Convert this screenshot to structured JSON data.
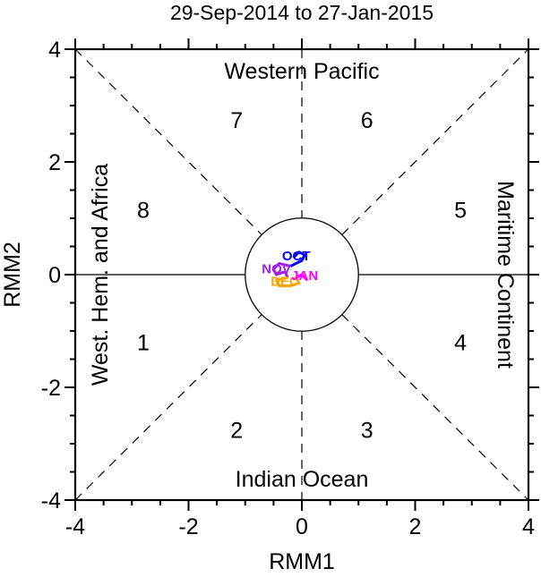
{
  "chart_data": {
    "type": "line",
    "title": "29-Sep-2014 to 27-Jan-2015",
    "xlabel": "RMM1",
    "ylabel": "RMM2",
    "xlim": [
      -4,
      4
    ],
    "ylim": [
      -4,
      4
    ],
    "xticks": [
      -4,
      -2,
      0,
      2,
      4
    ],
    "yticks": [
      -4,
      -2,
      0,
      2,
      4
    ],
    "xtick_labels": [
      "-4",
      "-2",
      "0",
      "2",
      "4"
    ],
    "ytick_labels": [
      "-4",
      "-2",
      "0",
      "2",
      "4"
    ],
    "grid": false,
    "region_labels": {
      "top": "Western Pacific",
      "bottom": "Indian Ocean",
      "left": "West. Hem. and Africa",
      "right": "Maritime Continent"
    },
    "phases": [
      {
        "label": "1",
        "x": -2.8,
        "y": -1.2
      },
      {
        "label": "2",
        "x": -1.15,
        "y": -2.75
      },
      {
        "label": "3",
        "x": 1.15,
        "y": -2.75
      },
      {
        "label": "4",
        "x": 2.8,
        "y": -1.2
      },
      {
        "label": "5",
        "x": 2.8,
        "y": 1.15
      },
      {
        "label": "6",
        "x": 1.15,
        "y": 2.75
      },
      {
        "label": "7",
        "x": -1.15,
        "y": 2.75
      },
      {
        "label": "8",
        "x": -2.8,
        "y": 1.15
      }
    ],
    "series": [
      {
        "name": "OCT",
        "color": "#0000ff",
        "x": [
          -0.15,
          -0.05,
          0.05,
          0.0,
          -0.1,
          -0.2
        ],
        "y": [
          0.3,
          0.4,
          0.35,
          0.25,
          0.2,
          0.15
        ]
      },
      {
        "name": "NOV",
        "color": "#a020f0",
        "x": [
          -0.2,
          -0.4,
          -0.5,
          -0.45,
          -0.3,
          -0.25
        ],
        "y": [
          0.15,
          0.2,
          0.1,
          0.0,
          0.05,
          -0.05
        ]
      },
      {
        "name": "DEC",
        "color": "#ffa500",
        "x": [
          -0.25,
          -0.45,
          -0.4,
          -0.2,
          -0.05,
          -0.1
        ],
        "y": [
          -0.05,
          -0.1,
          -0.2,
          -0.2,
          -0.15,
          -0.05
        ]
      },
      {
        "name": "JAN",
        "color": "#ff00ff",
        "x": [
          -0.1,
          0.0,
          0.05,
          0.1
        ],
        "y": [
          -0.05,
          0.0,
          -0.05,
          -0.1
        ]
      }
    ],
    "month_labels": [
      {
        "label": "OCT",
        "color": "#0000ff",
        "x": -0.1,
        "y": 0.35
      },
      {
        "label": "NOV",
        "color": "#a020f0",
        "x": -0.45,
        "y": 0.12
      },
      {
        "label": "DEC",
        "color": "#ffa500",
        "x": -0.3,
        "y": -0.1
      },
      {
        "label": "JAN",
        "color": "#ff00ff",
        "x": 0.05,
        "y": 0.0
      }
    ]
  }
}
